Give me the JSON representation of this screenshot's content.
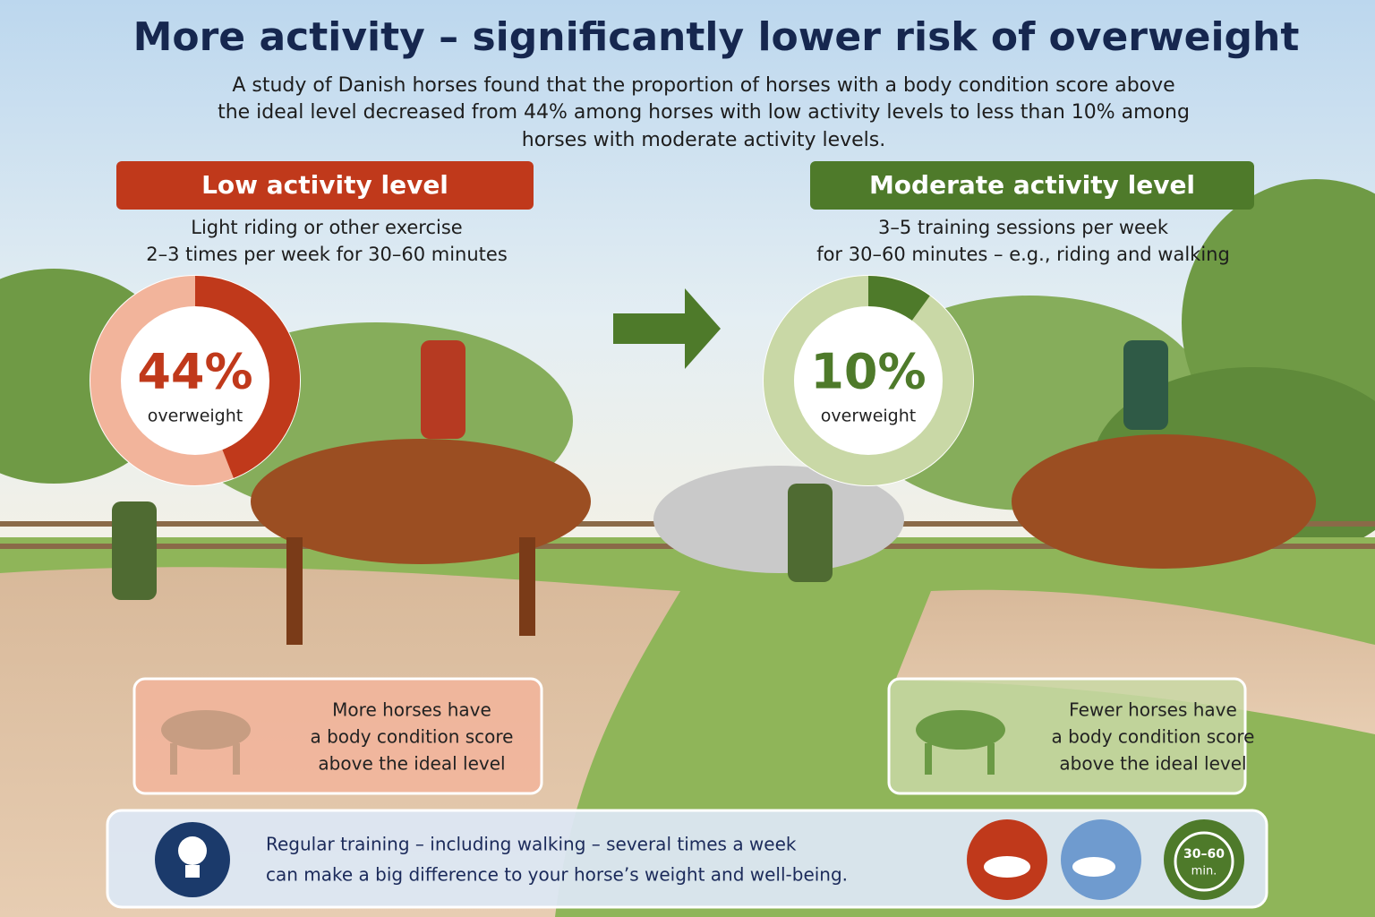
{
  "title": "More activity – significantly lower risk of overweight",
  "subtitle": [
    "A study of Danish horses found that the proportion of horses with a body condition score above",
    "the ideal level decreased from 44% among horses with low activity levels to less than 10% among",
    "horses with moderate activity levels."
  ],
  "panels": [
    {
      "heading": "Low activity level",
      "description": [
        "Light riding or other exercise",
        "2–3 times per week for 30–60 minutes"
      ],
      "value": 44,
      "value_label": "44%",
      "value_caption": "overweight",
      "note": [
        "More horses have",
        "a body condition score",
        "above the ideal level"
      ],
      "color": "#c0391b",
      "light_color": "#f2b49b"
    },
    {
      "heading": "Moderate activity level",
      "description": [
        "3–5 training sessions per week",
        "for 30–60 minutes – e.g., riding and walking"
      ],
      "value": 10,
      "value_label": "10%",
      "value_caption": "overweight",
      "note": [
        "Fewer horses have",
        "a body condition score",
        "above the ideal level"
      ],
      "color": "#4e7a2a",
      "light_color": "#c9d8a6"
    }
  ],
  "footer": {
    "text": [
      "Regular training – including walking – several times a week",
      "can make a big difference to your horse’s weight and well-being."
    ],
    "timer_label": [
      "30–60",
      "min."
    ]
  }
}
